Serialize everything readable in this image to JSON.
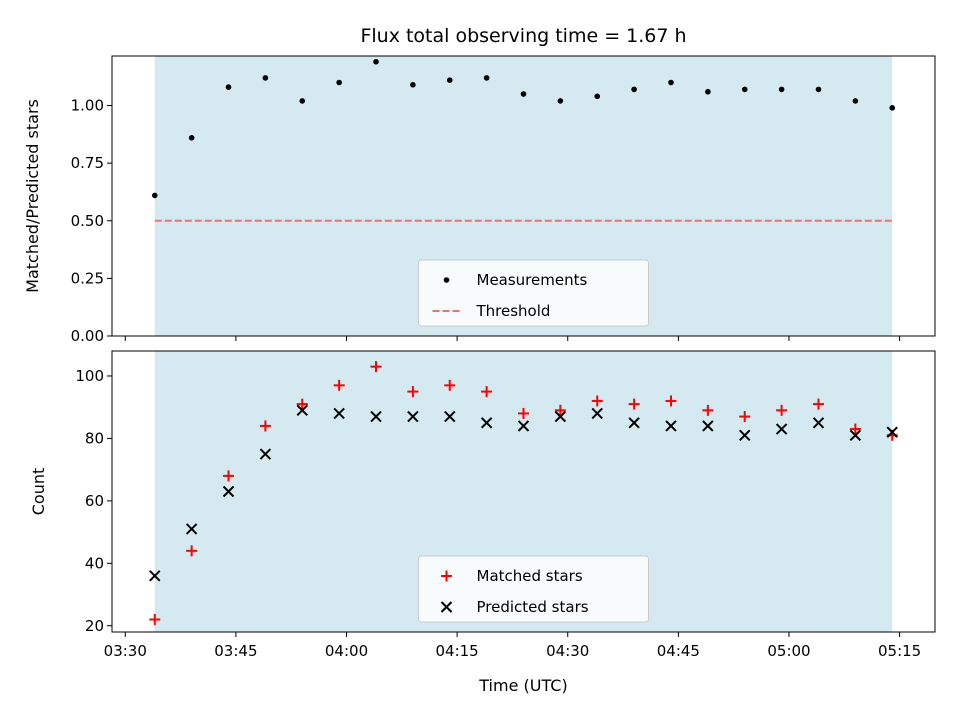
{
  "chart_data": [
    {
      "type": "scatter",
      "title": "Flux total observing time = 1.67 h",
      "xlabel": "",
      "ylabel": "Matched/Predicted stars",
      "ylim": [
        0,
        1.215
      ],
      "yticks": [
        "0.00",
        "0.25",
        "0.50",
        "0.75",
        "1.00"
      ],
      "shaded_span": {
        "from": "03:34",
        "to": "05:14",
        "color": "#d4eaf0"
      },
      "series": [
        {
          "name": "Measurements",
          "marker": "dot",
          "color": "#000000",
          "points": [
            [
              "03:34",
              0.61
            ],
            [
              "03:39",
              0.86
            ],
            [
              "03:44",
              1.08
            ],
            [
              "03:49",
              1.12
            ],
            [
              "03:54",
              1.02
            ],
            [
              "03:59",
              1.1
            ],
            [
              "04:04",
              1.19
            ],
            [
              "04:09",
              1.09
            ],
            [
              "04:14",
              1.11
            ],
            [
              "04:19",
              1.12
            ],
            [
              "04:24",
              1.05
            ],
            [
              "04:29",
              1.02
            ],
            [
              "04:34",
              1.04
            ],
            [
              "04:39",
              1.07
            ],
            [
              "04:44",
              1.1
            ],
            [
              "04:49",
              1.06
            ],
            [
              "04:54",
              1.07
            ],
            [
              "04:59",
              1.07
            ],
            [
              "05:04",
              1.07
            ],
            [
              "05:09",
              1.02
            ],
            [
              "05:14",
              0.99
            ]
          ]
        },
        {
          "name": "Threshold",
          "marker": "dashed-line",
          "color": "#f07070",
          "points": [
            [
              "03:34",
              0.5
            ],
            [
              "05:14",
              0.5
            ]
          ]
        }
      ],
      "legend": "bottom-center"
    },
    {
      "type": "scatter",
      "title": "",
      "xlabel": "Time (UTC)",
      "ylabel": "Count",
      "ylim": [
        18,
        108
      ],
      "yticks": [
        "20",
        "40",
        "60",
        "80",
        "100"
      ],
      "xticks": [
        "03:30",
        "03:45",
        "04:00",
        "04:15",
        "04:30",
        "04:45",
        "05:00",
        "05:15"
      ],
      "shaded_span": {
        "from": "03:34",
        "to": "05:14",
        "color": "#d4eaf0"
      },
      "series": [
        {
          "name": "Matched stars",
          "marker": "plus",
          "color": "#ff0000",
          "points": [
            [
              "03:34",
              22
            ],
            [
              "03:39",
              44
            ],
            [
              "03:44",
              68
            ],
            [
              "03:49",
              84
            ],
            [
              "03:54",
              91
            ],
            [
              "03:59",
              97
            ],
            [
              "04:04",
              103
            ],
            [
              "04:09",
              95
            ],
            [
              "04:14",
              97
            ],
            [
              "04:19",
              95
            ],
            [
              "04:24",
              88
            ],
            [
              "04:29",
              89
            ],
            [
              "04:34",
              92
            ],
            [
              "04:39",
              91
            ],
            [
              "04:44",
              92
            ],
            [
              "04:49",
              89
            ],
            [
              "04:54",
              87
            ],
            [
              "04:59",
              89
            ],
            [
              "05:04",
              91
            ],
            [
              "05:09",
              83
            ],
            [
              "05:14",
              81
            ]
          ]
        },
        {
          "name": "Predicted stars",
          "marker": "x",
          "color": "#000000",
          "points": [
            [
              "03:34",
              36
            ],
            [
              "03:39",
              51
            ],
            [
              "03:44",
              63
            ],
            [
              "03:49",
              75
            ],
            [
              "03:54",
              89
            ],
            [
              "03:59",
              88
            ],
            [
              "04:04",
              87
            ],
            [
              "04:09",
              87
            ],
            [
              "04:14",
              87
            ],
            [
              "04:19",
              85
            ],
            [
              "04:24",
              84
            ],
            [
              "04:29",
              87
            ],
            [
              "04:34",
              88
            ],
            [
              "04:39",
              85
            ],
            [
              "04:44",
              84
            ],
            [
              "04:49",
              84
            ],
            [
              "04:54",
              81
            ],
            [
              "04:59",
              83
            ],
            [
              "05:04",
              85
            ],
            [
              "05:09",
              81
            ],
            [
              "05:14",
              82
            ]
          ]
        }
      ],
      "legend": "bottom-center"
    }
  ]
}
